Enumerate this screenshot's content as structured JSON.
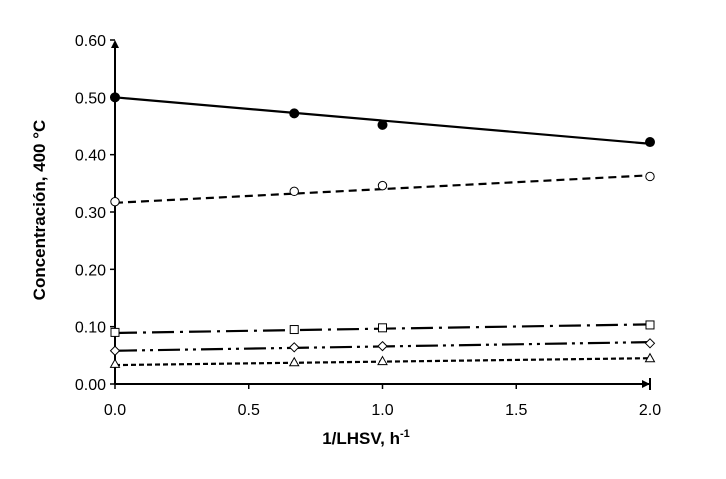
{
  "chart_data": {
    "type": "scatter",
    "xlabel": "1/LHSV, h",
    "xlabel_superscript": "-1",
    "ylabel": "Concentración, 400 °C",
    "xlim": [
      0,
      2
    ],
    "ylim": [
      0,
      0.6
    ],
    "x_ticks": [
      "0.0",
      "0.5",
      "1.0",
      "1.5",
      "2.0"
    ],
    "y_ticks": [
      "0.00",
      "0.10",
      "0.20",
      "0.30",
      "0.40",
      "0.50",
      "0.60"
    ],
    "x_tick_values": [
      0,
      0.5,
      1,
      1.5,
      2
    ],
    "y_tick_values": [
      0,
      0.1,
      0.2,
      0.3,
      0.4,
      0.5,
      0.6
    ],
    "grid": false,
    "legend": "none",
    "series": [
      {
        "marker": "filled-circle",
        "line_style": "solid",
        "x": [
          0,
          0.67,
          1.0,
          2.0
        ],
        "y": [
          0.5,
          0.472,
          0.452,
          0.422
        ],
        "fit": [
          0.5,
          0.419
        ]
      },
      {
        "marker": "open-circle",
        "line_style": "dashed",
        "x": [
          0,
          0.67,
          1.0,
          2.0
        ],
        "y": [
          0.318,
          0.336,
          0.346,
          0.362
        ],
        "fit": [
          0.316,
          0.364
        ]
      },
      {
        "marker": "open-square",
        "line_style": "long-dash-dot",
        "x": [
          0,
          0.67,
          1.0,
          2.0
        ],
        "y": [
          0.09,
          0.095,
          0.098,
          0.103
        ],
        "fit": [
          0.089,
          0.104
        ]
      },
      {
        "marker": "open-diamond",
        "line_style": "long-dash-dot-dot",
        "x": [
          0,
          0.67,
          1.0,
          2.0
        ],
        "y": [
          0.058,
          0.064,
          0.066,
          0.071
        ],
        "fit": [
          0.058,
          0.073
        ]
      },
      {
        "marker": "open-triangle",
        "line_style": "short-dash",
        "x": [
          0,
          0.67,
          1.0,
          2.0
        ],
        "y": [
          0.035,
          0.038,
          0.04,
          0.045
        ],
        "fit": [
          0.033,
          0.045
        ]
      }
    ]
  }
}
